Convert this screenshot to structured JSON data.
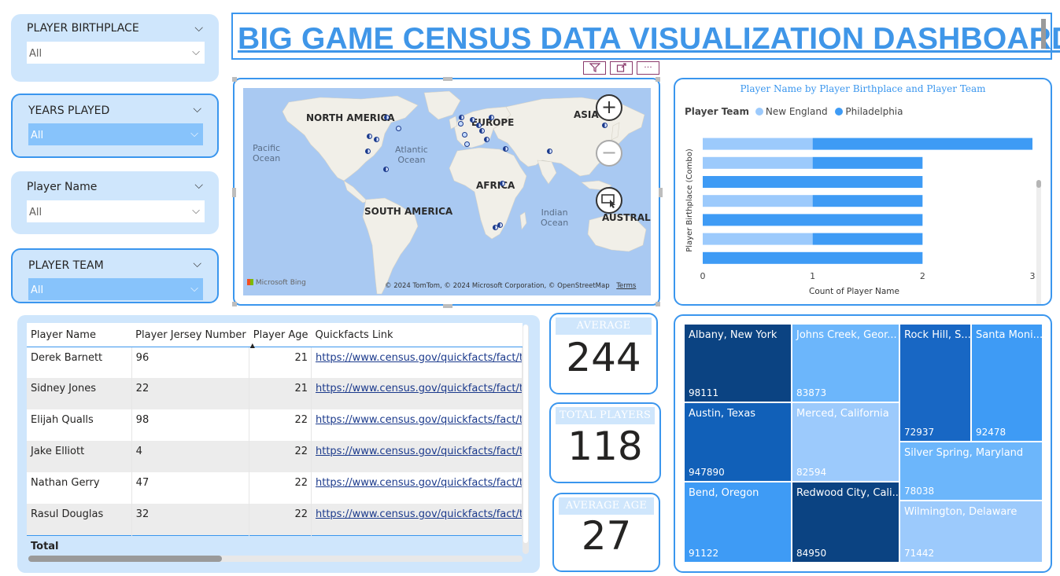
{
  "title": "BIG GAME CENSUS DATA VISUALIZATION DASHBOARD",
  "slicers": [
    {
      "label": "PLAYER BIRTHPLACE",
      "value": "All"
    },
    {
      "label": "YEARS PLAYED",
      "value": "All"
    },
    {
      "label": "Player Name",
      "value": "All"
    },
    {
      "label": "PLAYER TEAM",
      "value": "All"
    }
  ],
  "visual_header": {
    "filter_icon": "filter-icon",
    "focus_icon": "focus-mode-icon",
    "more_icon": "more-options-icon",
    "more": "···"
  },
  "map": {
    "labels": {
      "north_america": "NORTH AMERICA",
      "europe": "EUROPE",
      "asia": "ASIA",
      "africa": "AFRICA",
      "south_america": "SOUTH AMERICA",
      "australia": "AUSTRALIA",
      "pacific": "Pacific\nOcean",
      "atlantic": "Atlantic\nOcean",
      "indian": "Indian\nOcean"
    },
    "zoom_in": "+",
    "zoom_out": "−",
    "bing_logo": "Microsoft Bing",
    "attribution": "© 2024 TomTom, © 2024 Microsoft Corporation, © OpenStreetMap",
    "terms": "Terms",
    "colors": {
      "water": "#a9c9f2",
      "land": "#f1efe8",
      "dot": "#1b3a8c"
    }
  },
  "bar_chart": {
    "title": "Player Name by Player Birthplace and Player Team",
    "legend_title": "Player Team",
    "xlabel": "Count of Player Name",
    "ylabel": "Player Birthplace (Combo)"
  },
  "chart_data": {
    "type": "bar",
    "orientation": "horizontal",
    "stacked": true,
    "title": "Player Name by Player Birthplace and Player Team",
    "xlabel": "Count of Player Name",
    "ylabel": "Player Birthplace (Combo)",
    "xlim": [
      0,
      3
    ],
    "xticks": [
      "0",
      "1",
      "2",
      "3"
    ],
    "legend_position": "top-left",
    "series": [
      {
        "name": "New England",
        "color": "#9ccafc",
        "values": [
          1,
          1,
          0,
          1,
          0,
          1,
          0
        ]
      },
      {
        "name": "Philadelphia",
        "color": "#3e9bf5",
        "values": [
          2,
          1,
          2,
          1,
          2,
          1,
          2
        ]
      }
    ]
  },
  "table": {
    "headers": [
      "Player Name",
      "Player Jersey Number",
      "Player Age",
      "Quickfacts Link"
    ],
    "rows": [
      [
        "Derek Barnett",
        "96",
        "21",
        "https://www.census.gov/quickfacts/fact/tab"
      ],
      [
        "Sidney Jones",
        "22",
        "21",
        "https://www.census.gov/quickfacts/fact/tab"
      ],
      [
        "Elijah Qualls",
        "98",
        "22",
        "https://www.census.gov/quickfacts/fact/tab"
      ],
      [
        "Jake Elliott",
        "4",
        "22",
        "https://www.census.gov/quickfacts/fact/tab"
      ],
      [
        "Nathan Gerry",
        "47",
        "22",
        "https://www.census.gov/quickfacts/fact/tab"
      ],
      [
        "Rasul Douglas",
        "32",
        "22",
        "https://www.census.gov/quickfacts/fact/tab"
      ]
    ],
    "total_label": "Total",
    "sort_indicator": "▲"
  },
  "kpis": [
    {
      "label": "AVERAGE WEIGHT",
      "value": "244"
    },
    {
      "label": "TOTAL PLAYERS",
      "value": "118"
    },
    {
      "label": "AVERAGE AGE",
      "value": "27"
    }
  ],
  "treemap": [
    {
      "name": "Albany, New York",
      "value": "98111",
      "color": "#0b4382"
    },
    {
      "name": "Johns Creek, Geor...",
      "value": "83873",
      "color": "#6cb6fb"
    },
    {
      "name": "Rock Hill, S...",
      "value": "72937",
      "color": "#1867c4"
    },
    {
      "name": "Santa Moni...",
      "value": "92478",
      "color": "#3e9bf5"
    },
    {
      "name": "Austin, Texas",
      "value": "947890",
      "color": "#1160b8"
    },
    {
      "name": "Merced, California",
      "value": "82594",
      "color": "#9ccafc"
    },
    {
      "name": "Silver Spring, Maryland",
      "value": "78038",
      "color": "#6cb6fb"
    },
    {
      "name": "Bend, Oregon",
      "value": "91122",
      "color": "#3e9bf5"
    },
    {
      "name": "Redwood City, Cali...",
      "value": "84950",
      "color": "#0b4382"
    },
    {
      "name": "Wilmington, Delaware",
      "value": "71442",
      "color": "#9ccafc"
    }
  ]
}
